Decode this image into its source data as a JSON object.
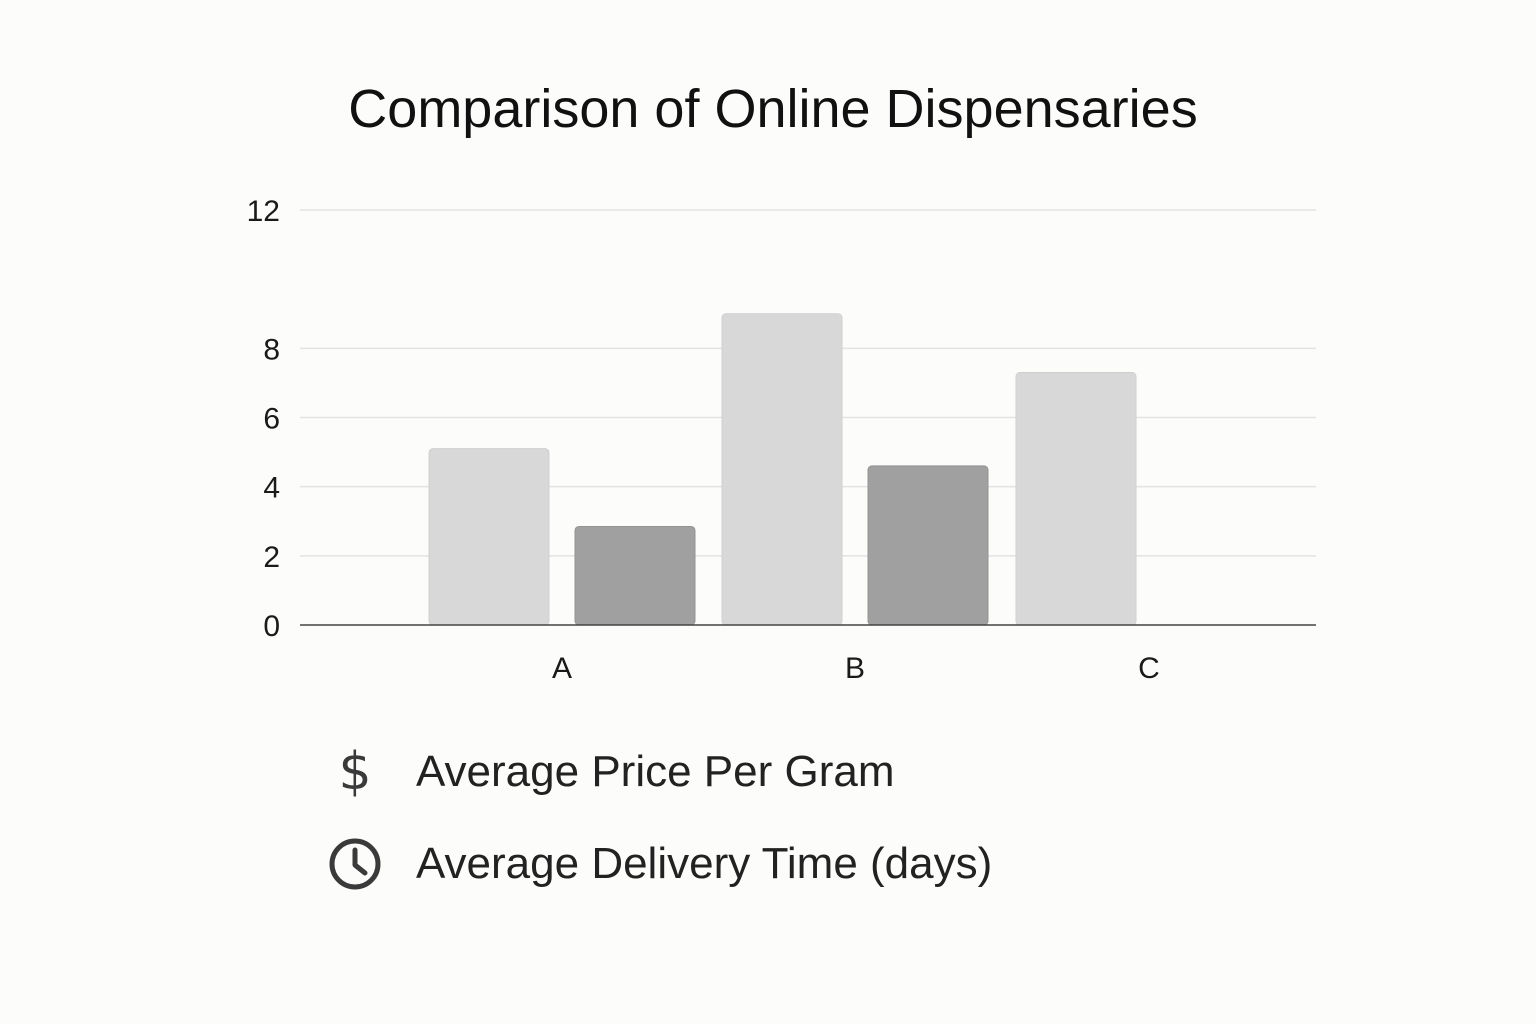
{
  "chart_data": {
    "type": "bar",
    "title": "Comparison of Online Dispensaries",
    "xlabel": "",
    "ylabel": "",
    "categories": [
      "A",
      "B",
      "C"
    ],
    "ylim": [
      0,
      12
    ],
    "yticks": [
      "0",
      "2",
      "4",
      "6",
      "8",
      "12"
    ],
    "grid": true,
    "legend_position": "bottom",
    "series": [
      {
        "name": "Average Price Per Gram",
        "values": [
          5.1,
          9.0,
          7.3
        ],
        "color": "#d8d8d8",
        "icon": "dollar-icon"
      },
      {
        "name": "Average Delivery Time (days)",
        "values": [
          2.85,
          4.6,
          null
        ],
        "color": "#a0a0a0",
        "icon": "clock-icon"
      }
    ]
  }
}
